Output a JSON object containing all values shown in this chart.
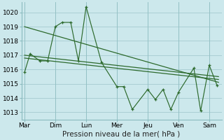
{
  "xlabel": "Pression niveau de la mer( hPa )",
  "background_color": "#cce8ec",
  "grid_color": "#aacfd4",
  "line_color": "#2d6a2d",
  "ylim": [
    1012.5,
    1020.7
  ],
  "xlim": [
    -0.1,
    6.4
  ],
  "xtick_labels": [
    "Mar",
    "Dim",
    "Lun",
    "Mer",
    "Jeu",
    "Ven",
    "Sam"
  ],
  "xtick_pos": [
    0,
    1,
    2,
    3,
    4,
    5,
    6
  ],
  "ytick_values": [
    1013,
    1014,
    1015,
    1016,
    1017,
    1018,
    1019,
    1020
  ],
  "series_wiggly": {
    "x": [
      0.0,
      0.18,
      0.5,
      0.75,
      1.0,
      1.22,
      1.5,
      1.75,
      2.0,
      2.5,
      3.0,
      3.22,
      3.5,
      4.0,
      4.25,
      4.5,
      4.75,
      5.0,
      5.5,
      5.72,
      6.0,
      6.25
    ],
    "y": [
      1015.8,
      1017.1,
      1016.6,
      1016.6,
      1019.0,
      1019.3,
      1019.3,
      1016.6,
      1020.4,
      1016.5,
      1014.8,
      1014.8,
      1013.2,
      1014.6,
      1013.9,
      1014.6,
      1013.2,
      1014.4,
      1016.1,
      1013.1,
      1016.3,
      1014.9
    ]
  },
  "series_trend1": {
    "x": [
      0.0,
      6.3
    ],
    "y": [
      1017.0,
      1015.5
    ]
  },
  "series_trend2": {
    "x": [
      0.0,
      6.3
    ],
    "y": [
      1016.8,
      1015.3
    ]
  },
  "series_trend3": {
    "x": [
      0.0,
      6.3
    ],
    "y": [
      1019.0,
      1015.1
    ]
  },
  "xlabel_fontsize": 7.5,
  "tick_fontsize": 6.5
}
